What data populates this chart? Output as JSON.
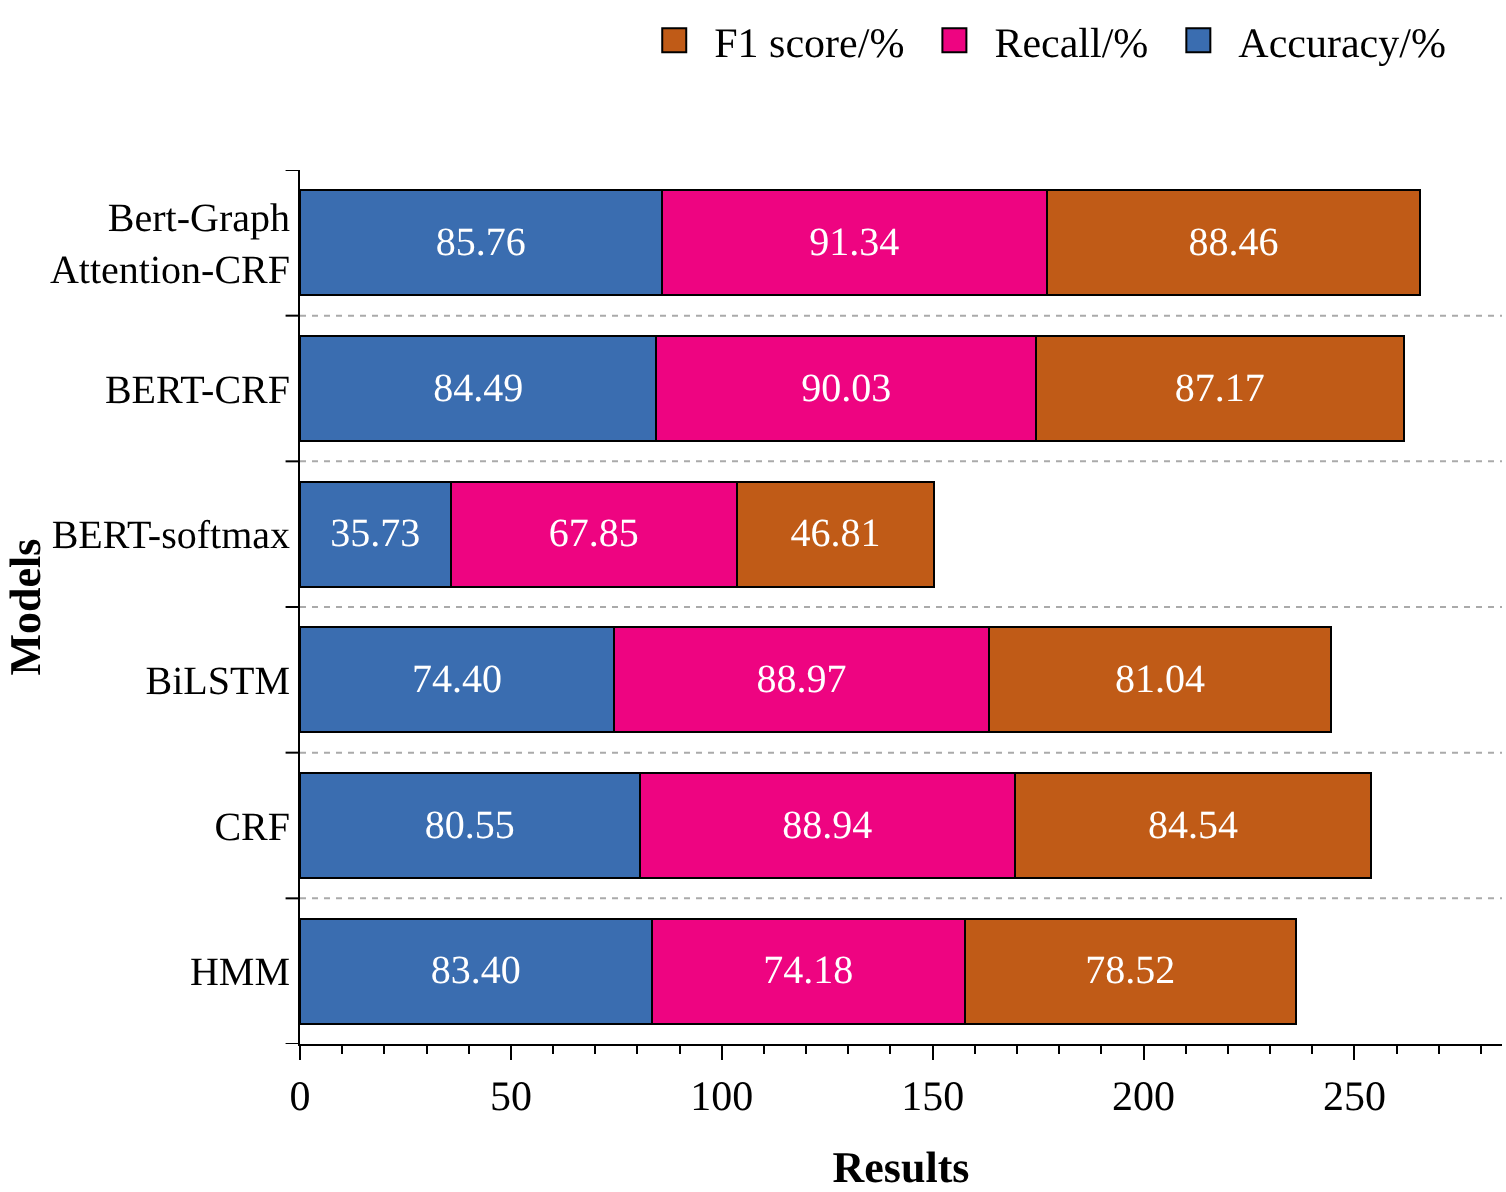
{
  "chart_data": {
    "type": "bar",
    "orientation": "horizontal",
    "stacked": true,
    "categories": [
      "Bert-Graph\nAttention-CRF",
      "BERT-CRF",
      "BERT-softmax",
      "BiLSTM",
      "CRF",
      "HMM"
    ],
    "series": [
      {
        "name": "Accuracy/%",
        "color": "#3a6db0",
        "values": [
          85.76,
          84.49,
          35.73,
          74.4,
          80.55,
          83.4
        ],
        "value_labels": [
          "85.76",
          "84.49",
          "35.73",
          "74.40",
          "80.55",
          "83.40"
        ]
      },
      {
        "name": "Recall/%",
        "color": "#ee0481",
        "values": [
          91.34,
          90.03,
          67.85,
          88.97,
          88.94,
          74.18
        ],
        "value_labels": [
          "91.34",
          "90.03",
          "67.85",
          "88.97",
          "88.94",
          "74.18"
        ]
      },
      {
        "name": "F1 score/%",
        "color": "#c05b17",
        "values": [
          88.46,
          87.17,
          46.81,
          81.04,
          84.54,
          78.52
        ],
        "value_labels": [
          "88.46",
          "87.17",
          "46.81",
          "81.04",
          "84.54",
          "78.52"
        ]
      }
    ],
    "xlabel": "Results",
    "ylabel": "Models",
    "xlim": [
      0,
      285
    ],
    "xticks": [
      0,
      50,
      100,
      150,
      200,
      250
    ],
    "grid": "y",
    "legend": "top"
  }
}
